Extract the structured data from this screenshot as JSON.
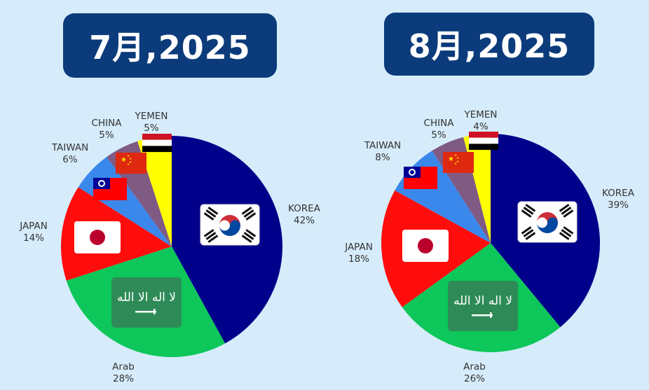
{
  "colors": {
    "KOREA": "#00008b",
    "Arab": "#0dc75a",
    "JAPAN": "#ff0d0d",
    "TAIWAN": "#3a88ec",
    "CHINA": "#7f5a83",
    "YEMEN": "#ffff00",
    "background": "#d6ecfb",
    "title_bg": "#0b3b7a"
  },
  "chart_data": [
    {
      "type": "pie",
      "title": "7月,2025",
      "categories": [
        "KOREA",
        "Arab",
        "JAPAN",
        "TAIWAN",
        "CHINA",
        "YEMEN"
      ],
      "values": [
        42,
        28,
        14,
        6,
        5,
        5
      ],
      "labels": [
        "42%",
        "28%",
        "14%",
        "6%",
        "5%",
        "5%"
      ],
      "start_angle_deg": 0,
      "direction": "clockwise",
      "legend": "labels-outside",
      "icons": [
        "flag-korea-icon",
        "flag-saudi-icon",
        "flag-japan-icon",
        "flag-taiwan-icon",
        "flag-china-icon",
        "flag-yemen-icon"
      ]
    },
    {
      "type": "pie",
      "title": "8月,2025",
      "categories": [
        "KOREA",
        "Arab",
        "JAPAN",
        "TAIWAN",
        "CHINA",
        "YEMEN"
      ],
      "values": [
        39,
        26,
        18,
        8,
        5,
        4
      ],
      "labels": [
        "39%",
        "26%",
        "18%",
        "8%",
        "5%",
        "4%"
      ],
      "start_angle_deg": 0,
      "direction": "clockwise",
      "legend": "labels-outside",
      "icons": [
        "flag-korea-icon",
        "flag-saudi-icon",
        "flag-japan-icon",
        "flag-taiwan-icon",
        "flag-china-icon",
        "flag-yemen-icon"
      ]
    }
  ]
}
